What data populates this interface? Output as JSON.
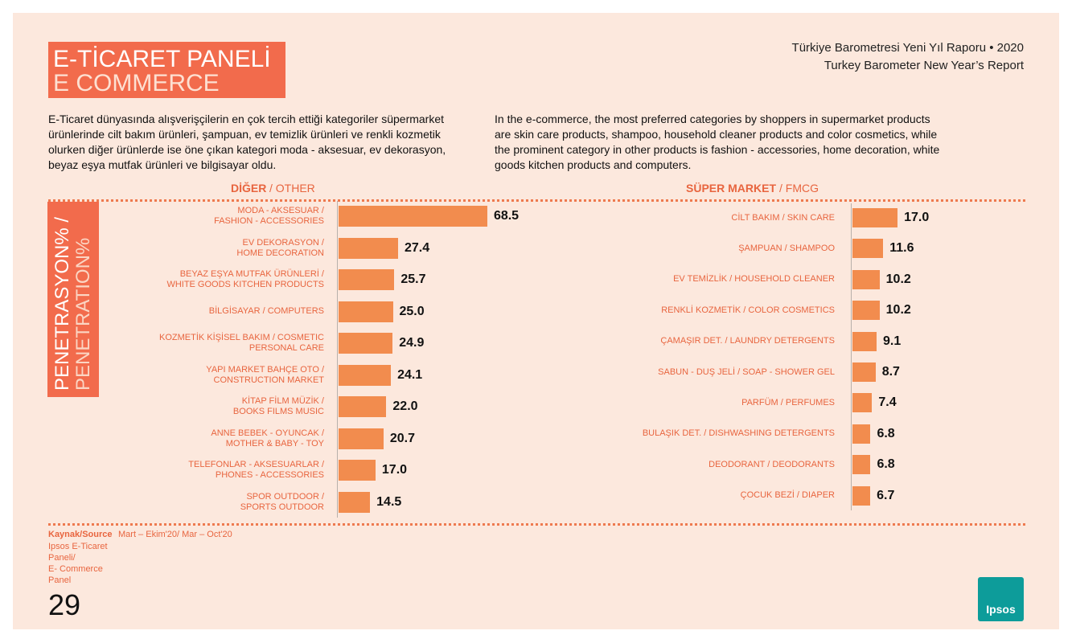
{
  "header": {
    "title": "E-TİCARET PANELİ",
    "subtitle": "E COMMERCE",
    "report_tr": "Türkiye Barometresi Yeni Yıl Raporu • 2020",
    "report_en": "Turkey Barometer New Year’s Report"
  },
  "intro": {
    "tr": "E-Ticaret dünyasında alışverişçilerin en çok tercih ettiği kategoriler süpermarket ürünlerinde cilt bakım ürünleri, şampuan, ev temizlik ürünleri ve renkli kozmetik olurken diğer ürünlerde ise öne çıkan kategori moda - aksesuar, ev dekorasyon, beyaz eşya mutfak ürünleri ve bilgisayar oldu.",
    "en": "In the e-commerce, the most preferred categories by shoppers in supermarket products are skin care products, shampoo, household cleaner products and color cosmetics, while the prominent category in other products is fashion - accessories, home decoration, white goods kitchen products and computers."
  },
  "side_label": {
    "tr": "PENETRASYON% /",
    "en": "PENETRATION%"
  },
  "chart_data": [
    {
      "type": "bar",
      "title": "DİĞER",
      "subtitle": "/ OTHER",
      "color": "#f28c4e",
      "categories": [
        "MODA - AKSESUAR /\nFASHION - ACCESSORIES",
        "EV DEKORASYON /\nHOME DECORATION",
        "BEYAZ EŞYA MUTFAK ÜRÜNLERİ /\nWHITE GOODS KITCHEN PRODUCTS",
        "BİLGİSAYAR / COMPUTERS",
        "KOZMETİK KİŞİSEL BAKIM / COSMETIC\nPERSONAL CARE",
        "YAPI MARKET BAHÇE OTO /\nCONSTRUCTION MARKET",
        "KİTAP FİLM MÜZİK /\nBOOKS FILMS MUSIC",
        "ANNE BEBEK - OYUNCAK /\nMOTHER & BABY - TOY",
        "TELEFONLAR - AKSESUARLAR /\nPHONES - ACCESSORIES",
        "SPOR OUTDOOR /\nSPORTS OUTDOOR"
      ],
      "values": [
        68.5,
        27.4,
        25.7,
        25.0,
        24.9,
        24.1,
        22.0,
        20.7,
        17.0,
        14.5
      ],
      "value_labels": [
        "68.5",
        "27.4",
        "25.7",
        "25.0",
        "24.9",
        "24.1",
        "22.0",
        "20.7",
        "17.0",
        "14.5"
      ]
    },
    {
      "type": "bar",
      "title": "SÜPER MARKET",
      "subtitle": "/ FMCG",
      "color": "#f28c4e",
      "categories": [
        "CİLT BAKIM / SKIN CARE",
        "ŞAMPUAN / SHAMPOO",
        "EV TEMİZLİK / HOUSEHOLD CLEANER",
        "RENKLİ KOZMETİK / COLOR COSMETICS",
        "ÇAMAŞIR DET. / LAUNDRY DETERGENTS",
        "SABUN - DUŞ JELİ / SOAP - SHOWER GEL",
        "PARFÜM / PERFUMES",
        "BULAŞIK DET. / DISHWASHING DETERGENTS",
        "DEODORANT / DEODORANTS",
        "ÇOCUK  BEZİ / DIAPER"
      ],
      "values": [
        17.0,
        11.6,
        10.2,
        10.2,
        9.1,
        8.7,
        7.4,
        6.8,
        6.8,
        6.7
      ],
      "value_labels": [
        "17.0",
        "11.6",
        "10.2",
        "10.2",
        "9.1",
        "8.7",
        "7.4",
        "6.8",
        "6.8",
        "6.7"
      ]
    }
  ],
  "footer": {
    "source_label": "Kaynak/Source",
    "source": "Ipsos E-Ticaret\nPaneli/\nE- Commerce\nPanel",
    "period": "Mart – Ekim'20/ Mar – Oct'20",
    "page_number": "29",
    "logo": "Ipsos"
  }
}
